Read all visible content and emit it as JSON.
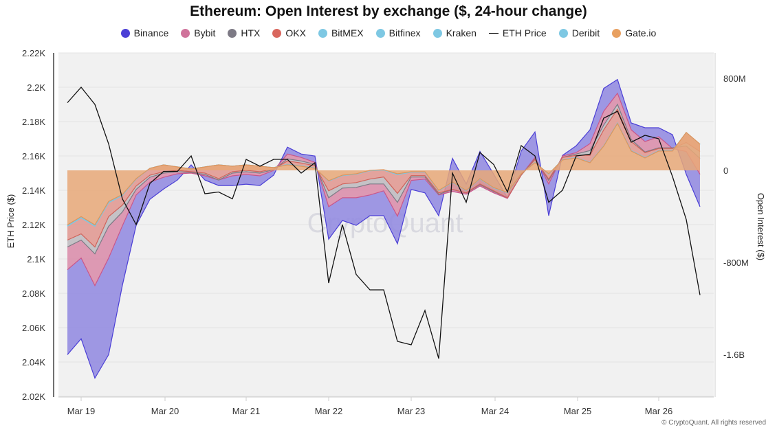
{
  "chart_data": {
    "type": "area",
    "title": "Ethereum: Open Interest by exchange ($, 24-hour change)",
    "ylabel_left": "ETH Price ($)",
    "ylabel_right": "Open Interest ($)",
    "left_ticks": [
      "2.22K",
      "2.2K",
      "2.18K",
      "2.16K",
      "2.14K",
      "2.12K",
      "2.1K",
      "2.08K",
      "2.06K",
      "2.04K",
      "2.02K"
    ],
    "left_tick_values": [
      2220,
      2200,
      2180,
      2160,
      2140,
      2120,
      2100,
      2080,
      2060,
      2040,
      2020
    ],
    "right_ticks": [
      "800M",
      "0",
      "-800M",
      "-1.6B"
    ],
    "right_tick_values": [
      800,
      0,
      -800,
      -1600
    ],
    "x_ticks": [
      "Mar 19",
      "Mar 20",
      "Mar 21",
      "Mar 22",
      "Mar 23",
      "Mar 24",
      "Mar 25",
      "Mar 26"
    ],
    "ylim_left": [
      2020,
      2220
    ],
    "ylim_right_millions": [
      -1960,
      1020
    ],
    "legend_placement": "top",
    "stacked": true,
    "grid": true,
    "x": [
      "Mar 18 20:00",
      "Mar 19 00:00",
      "Mar 19 04:00",
      "Mar 19 08:00",
      "Mar 19 12:00",
      "Mar 19 16:00",
      "Mar 19 20:00",
      "Mar 20 00:00",
      "Mar 20 04:00",
      "Mar 20 08:00",
      "Mar 20 12:00",
      "Mar 20 16:00",
      "Mar 20 20:00",
      "Mar 21 00:00",
      "Mar 21 04:00",
      "Mar 21 08:00",
      "Mar 21 12:00",
      "Mar 21 16:00",
      "Mar 21 20:00",
      "Mar 22 00:00",
      "Mar 22 04:00",
      "Mar 22 08:00",
      "Mar 22 12:00",
      "Mar 22 16:00",
      "Mar 22 20:00",
      "Mar 23 00:00",
      "Mar 23 04:00",
      "Mar 23 08:00",
      "Mar 23 12:00",
      "Mar 23 16:00",
      "Mar 23 20:00",
      "Mar 24 00:00",
      "Mar 24 04:00",
      "Mar 24 08:00",
      "Mar 24 12:00",
      "Mar 24 16:00",
      "Mar 24 20:00",
      "Mar 25 00:00",
      "Mar 25 04:00",
      "Mar 25 08:00",
      "Mar 25 12:00",
      "Mar 25 16:00",
      "Mar 25 20:00",
      "Mar 26 00:00",
      "Mar 26 04:00",
      "Mar 26 08:00",
      "Mar 26 12:00"
    ],
    "eth_price": {
      "name": "ETH Price",
      "color": "#111111",
      "values": [
        2191,
        2200,
        2190,
        2167,
        2135,
        2120,
        2144,
        2151,
        2151,
        2160,
        2138,
        2139,
        2135,
        2158,
        2154,
        2158,
        2158,
        2150,
        2156,
        2086,
        2120,
        2091,
        2082,
        2082,
        2052,
        2050,
        2070,
        2042,
        2150,
        2133,
        2162,
        2155,
        2139,
        2166,
        2160,
        2133,
        2140,
        2160,
        2161,
        2182,
        2186,
        2168,
        2172,
        2170,
        2148,
        2123,
        2079
      ]
    },
    "series_units": "USD millions",
    "series": [
      {
        "name": "Binance",
        "color": "#4b3fd6",
        "fill": "#8f87e0",
        "values": [
          -738,
          -702,
          -804,
          -840,
          -516,
          -264,
          -150,
          -102,
          -54,
          72,
          -36,
          -48,
          -84,
          -84,
          -84,
          -42,
          60,
          30,
          54,
          -282,
          -198,
          -240,
          -180,
          -216,
          -240,
          -78,
          -120,
          -180,
          288,
          90,
          300,
          162,
          6,
          210,
          222,
          -276,
          6,
          60,
          120,
          198,
          120,
          60,
          120,
          78,
          120,
          -198,
          -282
        ]
      },
      {
        "name": "Bybit",
        "color": "#c9568a",
        "fill": "#d98aa8",
        "values": [
          -198,
          -156,
          -276,
          -276,
          -120,
          -48,
          -42,
          -36,
          -18,
          -6,
          -12,
          0,
          -24,
          -24,
          -24,
          -6,
          42,
          30,
          18,
          -78,
          -84,
          -90,
          -96,
          -60,
          -120,
          -30,
          -18,
          -6,
          -18,
          -12,
          -12,
          -12,
          -6,
          0,
          12,
          -30,
          12,
          12,
          60,
          120,
          96,
          84,
          90,
          96,
          -6,
          -48,
          -138
        ]
      },
      {
        "name": "HTX",
        "color": "#7d7a85",
        "fill": "#bdbabe",
        "values": [
          -60,
          -54,
          -60,
          -84,
          -60,
          -30,
          -18,
          -12,
          -12,
          -6,
          -12,
          -12,
          -12,
          -12,
          -12,
          -6,
          18,
          18,
          12,
          -60,
          -36,
          -42,
          -42,
          -60,
          -78,
          -12,
          -12,
          -12,
          0,
          0,
          -6,
          -6,
          0,
          0,
          6,
          -12,
          0,
          12,
          42,
          42,
          42,
          18,
          6,
          6,
          6,
          -30,
          -60
        ]
      },
      {
        "name": "OKX",
        "color": "#d0625a",
        "fill": "#e0958e",
        "values": [
          -120,
          -138,
          -180,
          -120,
          -84,
          -60,
          -60,
          -60,
          -30,
          -24,
          -54,
          -120,
          -48,
          -48,
          -48,
          -12,
          30,
          24,
          18,
          -84,
          -72,
          -72,
          -72,
          -60,
          -162,
          -30,
          -30,
          -18,
          -60,
          -18,
          -42,
          -24,
          -42,
          -12,
          24,
          -42,
          18,
          18,
          60,
          138,
          120,
          78,
          42,
          18,
          18,
          -84,
          -60
        ]
      },
      {
        "name": "BitMEX",
        "color": "#7ec8e3",
        "fill": "#a6d8ea",
        "values": [
          -3,
          -3,
          -3,
          -3,
          -2,
          -1,
          0,
          0,
          0,
          0,
          0,
          0,
          0,
          0,
          0,
          0,
          1,
          1,
          1,
          -1,
          -1,
          -1,
          -1,
          -1,
          -2,
          -1,
          -1,
          -1,
          -1,
          -1,
          -1,
          -1,
          -1,
          0,
          1,
          -1,
          1,
          1,
          1,
          1,
          1,
          1,
          1,
          1,
          1,
          -1,
          -1
        ]
      },
      {
        "name": "Bitfinex",
        "color": "#7ec8e3",
        "fill": "#a6d8ea",
        "values": [
          -3,
          -3,
          -3,
          -3,
          -2,
          -1,
          0,
          0,
          0,
          0,
          0,
          0,
          0,
          0,
          0,
          0,
          1,
          1,
          1,
          -1,
          -1,
          -1,
          -1,
          -1,
          -2,
          -1,
          -1,
          -1,
          -1,
          -1,
          -1,
          -1,
          -1,
          0,
          1,
          -1,
          1,
          1,
          1,
          1,
          1,
          1,
          1,
          1,
          1,
          -1,
          -1
        ]
      },
      {
        "name": "Kraken",
        "color": "#7ec8e3",
        "fill": "#a6d8ea",
        "values": [
          -3,
          -3,
          -3,
          -3,
          -2,
          -1,
          0,
          0,
          0,
          0,
          0,
          0,
          0,
          0,
          0,
          0,
          1,
          1,
          1,
          -1,
          -1,
          -1,
          -1,
          -1,
          -2,
          -1,
          -1,
          -1,
          -1,
          -1,
          -1,
          -1,
          -1,
          0,
          1,
          -1,
          1,
          1,
          1,
          1,
          1,
          1,
          1,
          1,
          1,
          -1,
          -1
        ]
      },
      {
        "name": "Deribit",
        "color": "#7ec8e3",
        "fill": "#a6d8ea",
        "values": [
          -3,
          -3,
          -3,
          -3,
          -2,
          -1,
          0,
          0,
          0,
          0,
          0,
          0,
          0,
          0,
          0,
          0,
          1,
          1,
          1,
          -1,
          -1,
          -1,
          -1,
          -1,
          -2,
          -1,
          -1,
          -1,
          -1,
          -1,
          -1,
          -1,
          -1,
          0,
          1,
          -1,
          1,
          1,
          1,
          1,
          1,
          1,
          1,
          1,
          1,
          -1,
          -1
        ]
      },
      {
        "name": "Gate.io",
        "color": "#e0935a",
        "fill": "#e8a878",
        "values": [
          -474,
          -402,
          -474,
          -270,
          -210,
          -72,
          18,
          48,
          30,
          12,
          30,
          48,
          36,
          48,
          36,
          24,
          48,
          36,
          18,
          -90,
          -42,
          -30,
          0,
          6,
          -30,
          -12,
          -12,
          -174,
          -102,
          -174,
          -72,
          -150,
          -192,
          -30,
          66,
          -30,
          90,
          108,
          66,
          210,
          408,
          168,
          108,
          168,
          168,
          330,
          228
        ]
      }
    ],
    "legend": [
      {
        "label": "Binance",
        "color": "#4b3fd6"
      },
      {
        "label": "Bybit",
        "color": "#d0739b"
      },
      {
        "label": "HTX",
        "color": "#7d7a85"
      },
      {
        "label": "OKX",
        "color": "#d9675e"
      },
      {
        "label": "BitMEX",
        "color": "#7ec8e3"
      },
      {
        "label": "Bitfinex",
        "color": "#7ec8e3"
      },
      {
        "label": "Kraken",
        "color": "#7ec8e3"
      },
      {
        "label": "ETH Price",
        "color": "#111111",
        "line": true
      },
      {
        "label": "Deribit",
        "color": "#7ec8e3"
      },
      {
        "label": "Gate.io",
        "color": "#e8a060"
      }
    ]
  },
  "watermark": "CryptoQuant",
  "copyright": "© CryptoQuant. All rights reserved"
}
